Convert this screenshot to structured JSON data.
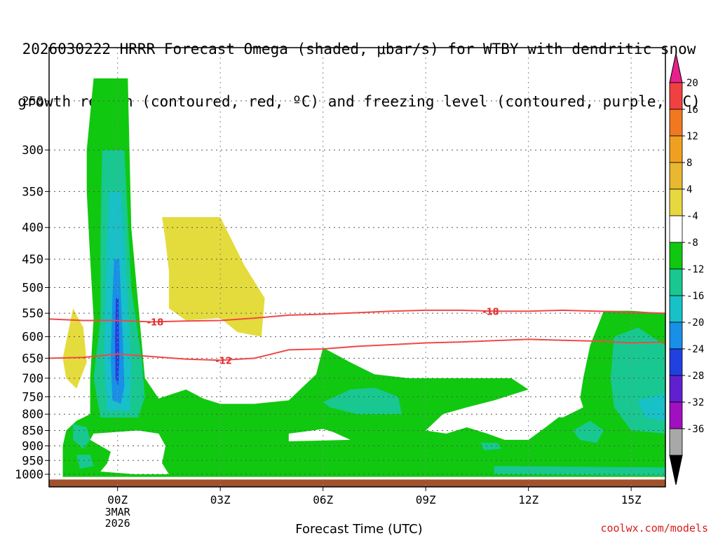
{
  "title": {
    "line1": "2026030222 HRRR Forecast Omega (shaded, μbar/s) for WTBY with dendritic snow",
    "line2": "growth region (contoured, red, ºC) and freezing level (contoured, purple, ºC)"
  },
  "credit": "coolwx.com/models",
  "chart_data": {
    "type": "heatmap",
    "xlabel": "Forecast Time (UTC)",
    "ylabel": "",
    "x_ticks": [
      {
        "hour": 0,
        "label": "00Z",
        "sub": [
          "3MAR",
          "2026"
        ]
      },
      {
        "hour": 3,
        "label": "03Z",
        "sub": []
      },
      {
        "hour": 6,
        "label": "06Z",
        "sub": []
      },
      {
        "hour": 9,
        "label": "09Z",
        "sub": []
      },
      {
        "hour": 12,
        "label": "12Z",
        "sub": []
      },
      {
        "hour": 15,
        "label": "15Z",
        "sub": []
      }
    ],
    "xlim": [
      -2,
      16
    ],
    "y_ticks": [
      250,
      300,
      350,
      400,
      450,
      500,
      550,
      600,
      650,
      700,
      750,
      800,
      850,
      900,
      950,
      1000
    ],
    "y_scale": "log-pressure (inverted)",
    "ylim": [
      1025,
      200
    ],
    "grid": true,
    "colorbar": {
      "labels": [
        "20",
        "16",
        "12",
        "8",
        "4",
        "-4",
        "-8",
        "-12",
        "-16",
        "-20",
        "-24",
        "-28",
        "-32",
        "-36"
      ],
      "colors": [
        "#f04040",
        "#f07820",
        "#f0a020",
        "#e8b830",
        "#e8d840",
        "#ffffff",
        "#10c810",
        "#18c890",
        "#18c0c8",
        "#1890e8",
        "#2040e0",
        "#6020d0",
        "#a010c0",
        "#a8a8a8"
      ],
      "top_arrow_color": "#e8208c",
      "bottom_arrow_color": "#000000"
    },
    "contours": [
      {
        "level": "-18",
        "color": "#f04848",
        "points": [
          [
            -2,
            562
          ],
          [
            -1,
            565
          ],
          [
            0,
            565
          ],
          [
            1,
            568
          ],
          [
            2,
            566
          ],
          [
            3,
            565
          ],
          [
            4,
            560
          ],
          [
            5,
            554
          ],
          [
            6,
            552
          ],
          [
            7,
            549
          ],
          [
            8,
            546
          ],
          [
            9,
            544
          ],
          [
            10,
            544
          ],
          [
            11,
            546
          ],
          [
            12,
            546
          ],
          [
            13,
            544
          ],
          [
            14,
            546
          ],
          [
            15,
            548
          ],
          [
            16,
            550
          ]
        ],
        "label_at": [
          [
            1.1,
            568
          ],
          [
            10.9,
            546
          ]
        ]
      },
      {
        "level": "-12",
        "color": "#f04848",
        "points": [
          [
            -2,
            650
          ],
          [
            -1,
            648
          ],
          [
            0,
            640
          ],
          [
            1,
            646
          ],
          [
            2,
            652
          ],
          [
            3,
            655
          ],
          [
            4,
            650
          ],
          [
            5,
            630
          ],
          [
            6,
            628
          ],
          [
            7,
            622
          ],
          [
            8,
            618
          ],
          [
            9,
            614
          ],
          [
            10,
            612
          ],
          [
            11,
            609
          ],
          [
            12,
            606
          ],
          [
            13,
            608
          ],
          [
            14,
            610
          ],
          [
            15,
            614
          ],
          [
            16,
            612
          ]
        ],
        "label_at": [
          [
            3.1,
            655
          ]
        ]
      }
    ],
    "shaded_regions": [
      {
        "omega": 6,
        "color": "#e4dc3c",
        "points": [
          [
            -1.6,
            650
          ],
          [
            -1.3,
            540
          ],
          [
            -1.0,
            580
          ],
          [
            -0.9,
            660
          ],
          [
            -1.2,
            728
          ],
          [
            -1.5,
            700
          ]
        ]
      },
      {
        "omega": 6,
        "color": "#e4dc3c",
        "points": [
          [
            1.3,
            385
          ],
          [
            3.0,
            385
          ],
          [
            3.7,
            460
          ],
          [
            4.3,
            520
          ],
          [
            4.2,
            600
          ],
          [
            3.5,
            590
          ],
          [
            3.0,
            560
          ],
          [
            2.0,
            565
          ],
          [
            1.5,
            540
          ],
          [
            1.5,
            470
          ],
          [
            1.4,
            420
          ]
        ]
      },
      {
        "omega": -6,
        "color": "#10c810",
        "points": [
          [
            -0.7,
            230
          ],
          [
            0.3,
            230
          ],
          [
            0.4,
            400
          ],
          [
            0.8,
            700
          ],
          [
            1.2,
            755
          ],
          [
            2.0,
            730
          ],
          [
            2.5,
            755
          ],
          [
            3.0,
            770
          ],
          [
            4.0,
            770
          ],
          [
            5.0,
            760
          ],
          [
            5.8,
            690
          ],
          [
            6.0,
            625
          ],
          [
            6.8,
            660
          ],
          [
            7.5,
            690
          ],
          [
            8.5,
            700
          ],
          [
            9.5,
            700
          ],
          [
            10.5,
            700
          ],
          [
            11.5,
            700
          ],
          [
            12.0,
            730
          ],
          [
            11.0,
            760
          ],
          [
            10.2,
            780
          ],
          [
            9.5,
            800
          ],
          [
            9.0,
            850
          ],
          [
            9.6,
            860
          ],
          [
            10.2,
            840
          ],
          [
            10.8,
            860
          ],
          [
            11.3,
            880
          ],
          [
            12.0,
            880
          ],
          [
            12.5,
            840
          ],
          [
            13.0,
            800
          ],
          [
            13.5,
            760
          ],
          [
            13.6,
            700
          ],
          [
            13.8,
            620
          ],
          [
            14.2,
            545
          ],
          [
            15.0,
            545
          ],
          [
            16,
            550
          ],
          [
            16,
            1010
          ],
          [
            -1.6,
            1010
          ],
          [
            -1.6,
            960
          ],
          [
            -1.6,
            900
          ],
          [
            -1.5,
            850
          ],
          [
            -1.2,
            820
          ],
          [
            -0.8,
            800
          ],
          [
            -0.8,
            700
          ],
          [
            -0.7,
            560
          ],
          [
            -0.8,
            450
          ],
          [
            -0.9,
            350
          ],
          [
            -0.9,
            300
          ]
        ]
      },
      {
        "omega": 2,
        "color": "#ffffff",
        "points": [
          [
            -0.7,
            860
          ],
          [
            0.6,
            850
          ],
          [
            1.2,
            860
          ],
          [
            1.4,
            900
          ],
          [
            1.3,
            960
          ],
          [
            1.5,
            1000
          ],
          [
            0.5,
            1000
          ],
          [
            -0.5,
            990
          ],
          [
            -0.3,
            960
          ],
          [
            -0.2,
            920
          ],
          [
            -0.8,
            880
          ]
        ]
      },
      {
        "omega": 2,
        "color": "#ffffff",
        "points": [
          [
            5.0,
            860
          ],
          [
            5.7,
            850
          ],
          [
            6.0,
            845
          ],
          [
            6.3,
            855
          ],
          [
            6.8,
            880
          ],
          [
            5.0,
            885
          ]
        ]
      },
      {
        "omega": 2,
        "color": "#ffffff",
        "points": [
          [
            12.2,
            800
          ],
          [
            12.5,
            760
          ],
          [
            13.0,
            730
          ],
          [
            13.4,
            720
          ],
          [
            13.6,
            780
          ],
          [
            13.0,
            810
          ]
        ]
      },
      {
        "omega": -10,
        "color": "#18c890",
        "points": [
          [
            -0.45,
            300
          ],
          [
            0.2,
            300
          ],
          [
            0.4,
            500
          ],
          [
            0.7,
            650
          ],
          [
            0.8,
            750
          ],
          [
            0.6,
            810
          ],
          [
            -0.5,
            810
          ],
          [
            -0.7,
            700
          ],
          [
            -0.5,
            560
          ],
          [
            -0.5,
            420
          ]
        ]
      },
      {
        "omega": -10,
        "color": "#18c890",
        "points": [
          [
            -1.3,
            830
          ],
          [
            -0.9,
            840
          ],
          [
            -0.8,
            880
          ],
          [
            -1.0,
            910
          ],
          [
            -1.3,
            880
          ]
        ]
      },
      {
        "omega": -10,
        "color": "#18c890",
        "points": [
          [
            -1.2,
            930
          ],
          [
            -0.8,
            930
          ],
          [
            -0.7,
            970
          ],
          [
            -1.1,
            980
          ]
        ]
      },
      {
        "omega": -10,
        "color": "#18c890",
        "points": [
          [
            6.0,
            765
          ],
          [
            6.8,
            730
          ],
          [
            7.5,
            725
          ],
          [
            8.2,
            750
          ],
          [
            8.3,
            800
          ],
          [
            7.0,
            800
          ],
          [
            6.2,
            780
          ]
        ]
      },
      {
        "omega": -10,
        "color": "#18c890",
        "points": [
          [
            13.3,
            850
          ],
          [
            13.8,
            820
          ],
          [
            14.2,
            850
          ],
          [
            14.0,
            890
          ],
          [
            13.5,
            880
          ]
        ]
      },
      {
        "omega": -10,
        "color": "#18c890",
        "points": [
          [
            10.6,
            890
          ],
          [
            11.1,
            890
          ],
          [
            11.2,
            910
          ],
          [
            10.7,
            915
          ]
        ]
      },
      {
        "omega": -10,
        "color": "#18c890",
        "points": [
          [
            11.0,
            970
          ],
          [
            16,
            975
          ],
          [
            16,
            1005
          ],
          [
            11.0,
            1000
          ]
        ]
      },
      {
        "omega": -10,
        "color": "#18c890",
        "points": [
          [
            14.5,
            600
          ],
          [
            15.2,
            580
          ],
          [
            16,
            620
          ],
          [
            16,
            860
          ],
          [
            15.0,
            850
          ],
          [
            14.5,
            780
          ],
          [
            14.4,
            700
          ]
        ]
      },
      {
        "omega": -14,
        "color": "#18c0c8",
        "points": [
          [
            -0.25,
            350
          ],
          [
            0.1,
            350
          ],
          [
            0.3,
            520
          ],
          [
            0.4,
            680
          ],
          [
            0.35,
            790
          ],
          [
            -0.3,
            790
          ],
          [
            -0.4,
            650
          ],
          [
            -0.35,
            500
          ]
        ]
      },
      {
        "omega": -14,
        "color": "#18c0c8",
        "points": [
          [
            15.2,
            760
          ],
          [
            16,
            740
          ],
          [
            16,
            820
          ],
          [
            15.4,
            810
          ]
        ]
      },
      {
        "omega": -18,
        "color": "#1890e8",
        "points": [
          [
            -0.1,
            450
          ],
          [
            0.05,
            450
          ],
          [
            0.15,
            600
          ],
          [
            0.2,
            720
          ],
          [
            0.1,
            770
          ],
          [
            -0.15,
            760
          ],
          [
            -0.2,
            650
          ],
          [
            -0.15,
            520
          ]
        ]
      },
      {
        "omega": -22,
        "color": "#2040e0",
        "points": [
          [
            -0.05,
            520
          ],
          [
            0.03,
            520
          ],
          [
            0.05,
            650
          ],
          [
            0.02,
            720
          ],
          [
            -0.06,
            700
          ],
          [
            -0.07,
            600
          ]
        ]
      }
    ],
    "terrain": {
      "color": "#a0522d",
      "top": 1025
    }
  }
}
